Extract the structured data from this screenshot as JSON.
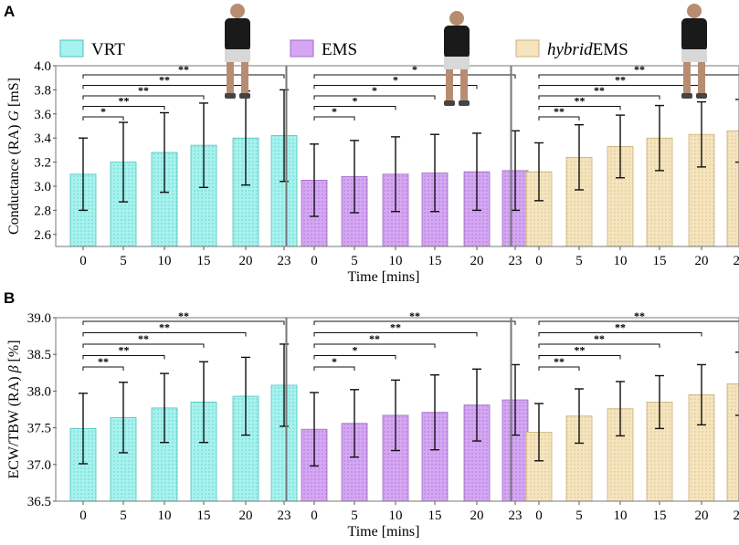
{
  "panels": [
    {
      "letter": "A"
    },
    {
      "letter": "B"
    }
  ],
  "groups": [
    {
      "name": "VRT",
      "name_italic": "",
      "color": "#a6f2ee",
      "stroke": "#4cc3bd"
    },
    {
      "name": "EMS",
      "name_italic": "",
      "color": "#d5a6f3",
      "stroke": "#9e6bc2"
    },
    {
      "name": "EMS",
      "name_italic": "hybrid",
      "color": "#f5e4bd",
      "stroke": "#c9b27a"
    }
  ],
  "photo_icons": [
    "vrt-athlete-illustration",
    "ems-athlete-illustration",
    "hybrid-ems-athlete-illustration"
  ],
  "chart_data": [
    {
      "type": "bar",
      "panel": "A",
      "title": "",
      "xlabel": "Time [mins]",
      "ylabel": "Conductance (RA) G [mS]",
      "ylabel_parts": [
        "Conductance (RA) ",
        "G",
        " [mS]"
      ],
      "ylim": [
        2.5,
        4.0
      ],
      "yticks": [
        "2.6",
        "2.8",
        "3.0",
        "3.2",
        "3.4",
        "3.6",
        "3.8",
        "4.0"
      ],
      "categories": [
        "0",
        "5",
        "10",
        "15",
        "20",
        "23"
      ],
      "series": [
        {
          "name": "VRT",
          "values": [
            3.1,
            3.2,
            3.28,
            3.34,
            3.4,
            3.42
          ],
          "errors": [
            0.3,
            0.33,
            0.33,
            0.35,
            0.39,
            0.38
          ],
          "sig": [
            "*",
            "**",
            "**",
            "**",
            "**"
          ]
        },
        {
          "name": "EMS",
          "values": [
            3.05,
            3.08,
            3.1,
            3.11,
            3.12,
            3.13
          ],
          "errors": [
            0.3,
            0.3,
            0.31,
            0.32,
            0.32,
            0.33
          ],
          "sig": [
            "*",
            "*",
            "*",
            "*",
            "*"
          ]
        },
        {
          "name": "hybridEMS",
          "values": [
            3.12,
            3.24,
            3.33,
            3.4,
            3.43,
            3.46
          ],
          "errors": [
            0.24,
            0.27,
            0.26,
            0.27,
            0.27,
            0.26
          ],
          "sig": [
            "**",
            "**",
            "**",
            "**",
            "**"
          ]
        }
      ]
    },
    {
      "type": "bar",
      "panel": "B",
      "title": "",
      "xlabel": "Time [mins]",
      "ylabel": "ECW/TBW (RA) β [%]",
      "ylabel_parts": [
        "ECW/TBW (RA) ",
        "β",
        " [%]"
      ],
      "ylim": [
        36.5,
        39.0
      ],
      "yticks": [
        "36.5",
        "37.0",
        "37.5",
        "38.0",
        "38.5",
        "39.0"
      ],
      "categories": [
        "0",
        "5",
        "10",
        "15",
        "20",
        "23"
      ],
      "series": [
        {
          "name": "VRT",
          "values": [
            37.49,
            37.64,
            37.77,
            37.85,
            37.93,
            38.08
          ],
          "errors": [
            0.48,
            0.48,
            0.47,
            0.55,
            0.53,
            0.56
          ],
          "sig": [
            "**",
            "**",
            "**",
            "**",
            "**"
          ]
        },
        {
          "name": "EMS",
          "values": [
            37.48,
            37.56,
            37.67,
            37.71,
            37.81,
            37.88
          ],
          "errors": [
            0.5,
            0.46,
            0.48,
            0.51,
            0.49,
            0.48
          ],
          "sig": [
            "*",
            "*",
            "**",
            "**",
            "**"
          ]
        },
        {
          "name": "hybridEMS",
          "values": [
            37.44,
            37.66,
            37.76,
            37.85,
            37.95,
            38.1
          ],
          "errors": [
            0.39,
            0.37,
            0.37,
            0.36,
            0.41,
            0.43
          ],
          "sig": [
            "**",
            "**",
            "**",
            "**",
            "**"
          ]
        }
      ]
    }
  ]
}
